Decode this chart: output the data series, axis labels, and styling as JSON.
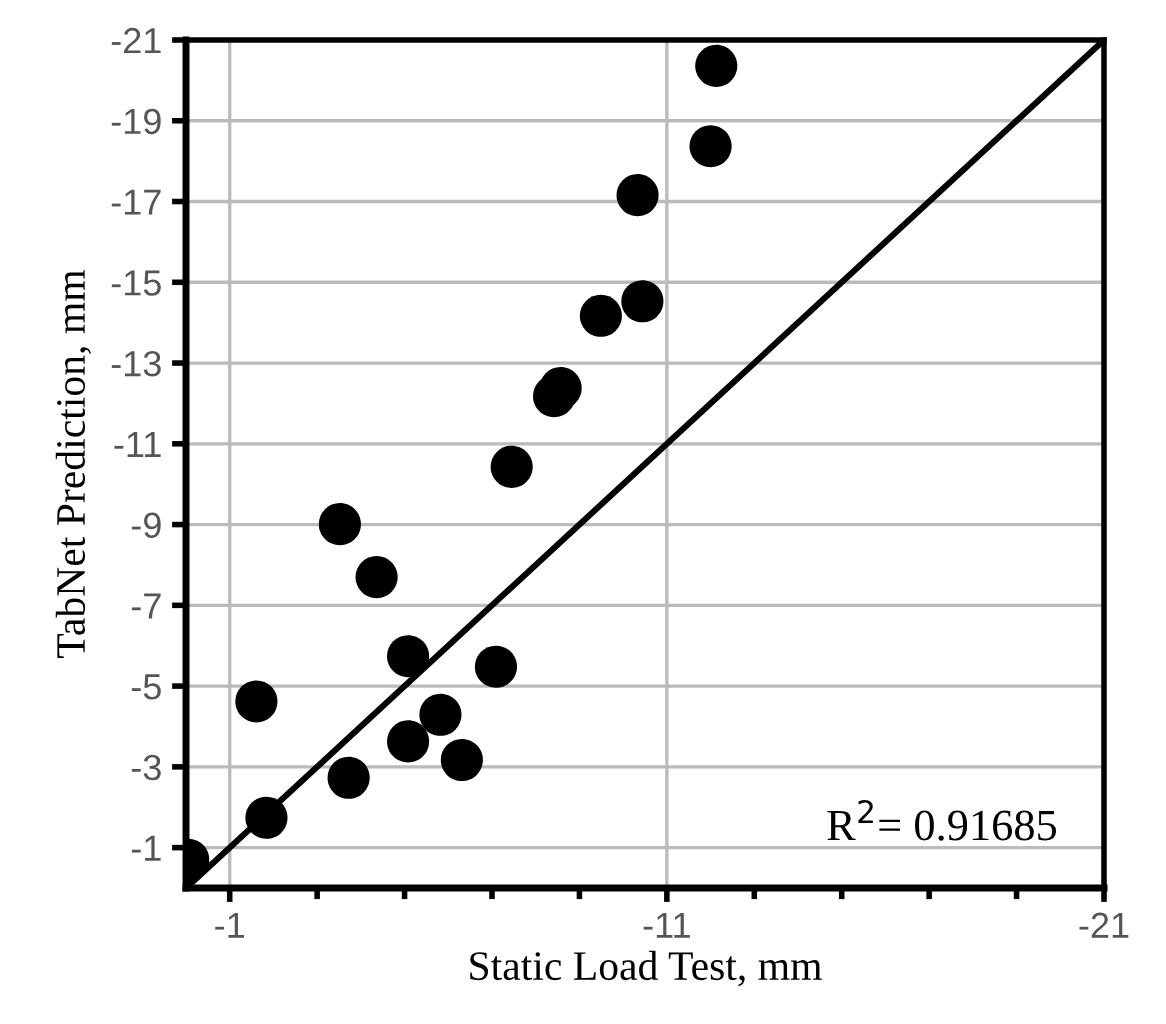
{
  "chart_data": {
    "type": "scatter",
    "xlabel": "Static Load Test, mm",
    "ylabel": "TabNet Prediction, mm",
    "annotations": [
      "R$^{2}$= 0.91685"
    ],
    "xlim": [
      0,
      -21
    ],
    "ylim": [
      0,
      -21
    ],
    "xticks": [
      -1,
      {
        "value": -3,
        "label": null
      },
      {
        "value": -5,
        "label": null
      },
      {
        "value": -7,
        "label": null
      },
      {
        "value": -9,
        "label": null
      },
      -11,
      {
        "value": -13,
        "label": null
      },
      {
        "value": -15,
        "label": null
      },
      {
        "value": -17,
        "label": null
      },
      {
        "value": -19,
        "label": null
      },
      -21
    ],
    "yticks": [
      -1,
      -3,
      -5,
      -7,
      -9,
      -11,
      -13,
      -15,
      -17,
      -19,
      -21
    ],
    "grid": true,
    "series": [
      {
        "marker": "circle",
        "color": "#000000",
        "x": [
          -0.05,
          -1.84,
          -1.61,
          -3.72,
          -3.52,
          -4.36,
          -5.08,
          -5.08,
          -5.82,
          -6.31,
          -7.09,
          -7.45,
          -8.42,
          -8.57,
          -9.49,
          -10.44,
          -10.33,
          -12.0,
          -12.13
        ],
        "values": [
          -0.7,
          -1.74,
          -4.62,
          -2.73,
          -9.01,
          -7.7,
          -5.74,
          -3.63,
          -4.29,
          -3.17,
          -5.48,
          -10.43,
          -12.18,
          -12.38,
          -14.17,
          -14.53,
          -17.16,
          -18.37,
          -20.36
        ]
      },
      {
        "type": "line",
        "color": "#000000",
        "x": [
          0,
          -21
        ],
        "values": [
          0,
          -21
        ]
      }
    ]
  }
}
